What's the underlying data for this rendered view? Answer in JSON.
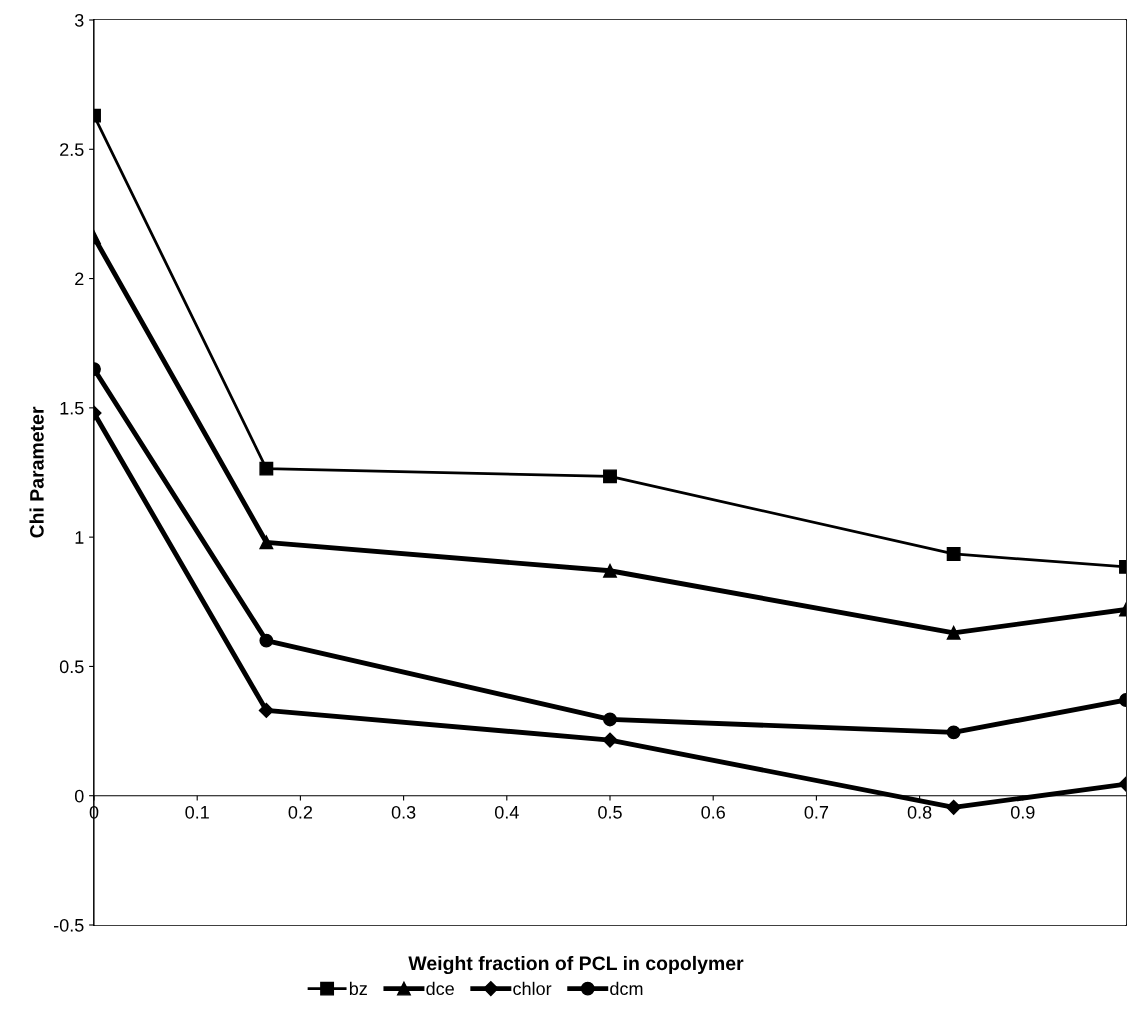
{
  "chart_data": {
    "type": "line",
    "xlabel": "Weight fraction of PCL in copolymer",
    "ylabel": "Chi Parameter",
    "x": [
      0,
      0.167,
      0.5,
      0.833,
      1.0
    ],
    "series": [
      {
        "name": "bz",
        "color": "#000000",
        "marker": "square",
        "values": [
          2.63,
          1.265,
          1.235,
          0.935,
          0.885
        ]
      },
      {
        "name": "dce",
        "color": "#000000",
        "marker": "triangle",
        "values": [
          2.16,
          0.98,
          0.87,
          0.63,
          0.72
        ]
      },
      {
        "name": "chlor",
        "color": "#000000",
        "marker": "diamond",
        "values": [
          1.48,
          0.33,
          0.215,
          -0.045,
          0.045
        ]
      },
      {
        "name": "dcm",
        "color": "#000000",
        "marker": "circle",
        "values": [
          1.65,
          0.6,
          0.295,
          0.245,
          0.37
        ]
      }
    ],
    "xlim": [
      0,
      1
    ],
    "xticks": [
      0,
      0.1,
      0.2,
      0.3,
      0.4,
      0.5,
      0.6,
      0.7,
      0.8,
      0.9
    ],
    "ylim": [
      -0.5,
      3
    ],
    "yticks": [
      -0.5,
      0,
      0.5,
      1,
      1.5,
      2,
      2.5,
      3
    ],
    "grid": false,
    "legend": "bottom",
    "line_style": "solid"
  }
}
